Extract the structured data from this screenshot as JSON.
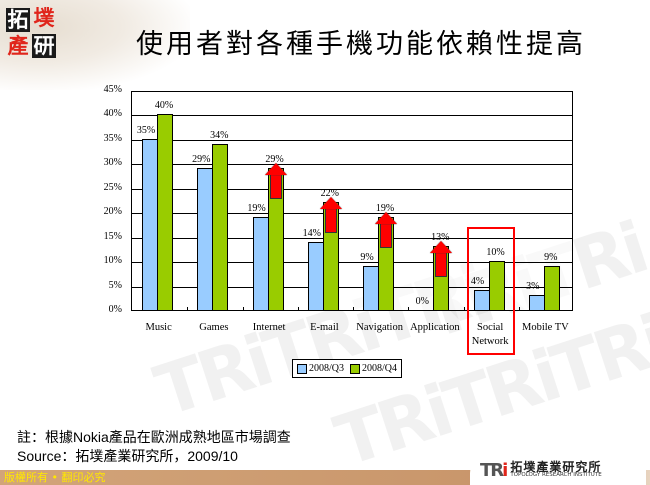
{
  "header": {
    "logo_chars": [
      "拓",
      "墣",
      "產",
      "研"
    ],
    "title": "使用者對各種手機功能依賴性提高"
  },
  "chart_data": {
    "type": "bar",
    "title": "使用者對各種手機功能依賴性提高",
    "categories": [
      "Music",
      "Games",
      "Internet",
      "E-mail",
      "Navigation",
      "Application",
      "Social Network",
      "Mobile TV"
    ],
    "category_lines": [
      [
        "Music"
      ],
      [
        "Games"
      ],
      [
        "Internet"
      ],
      [
        "E-mail"
      ],
      [
        "Navigation"
      ],
      [
        "Application"
      ],
      [
        "Social",
        "Network"
      ],
      [
        "Mobile TV"
      ]
    ],
    "series": [
      {
        "name": "2008/Q3",
        "color": "#99ccff",
        "values": [
          35,
          29,
          19,
          14,
          9,
          0,
          4,
          3
        ]
      },
      {
        "name": "2008/Q4",
        "color": "#99cc00",
        "values": [
          40,
          34,
          29,
          22,
          19,
          13,
          10,
          9
        ]
      }
    ],
    "value_labels": {
      "2008/Q3": [
        "35%",
        "29%",
        "19%",
        "14%",
        "9%",
        "0%",
        "4%",
        "3%"
      ],
      "2008/Q4": [
        "40%",
        "34%",
        "29%",
        "22%",
        "19%",
        "13%",
        "10%",
        "9%"
      ]
    },
    "yticks": [
      "0%",
      "5%",
      "10%",
      "15%",
      "20%",
      "25%",
      "30%",
      "35%",
      "40%",
      "45%"
    ],
    "ylim": [
      0,
      45
    ],
    "xlabel": "",
    "ylabel": "",
    "grid": true,
    "legend_position": "bottom",
    "annotations": {
      "up_arrows_on": [
        "Internet",
        "E-mail",
        "Navigation",
        "Application"
      ],
      "highlight_box": "Social Network"
    }
  },
  "legend": {
    "items": [
      {
        "label": "2008/Q3",
        "color": "#99ccff"
      },
      {
        "label": "2008/Q4",
        "color": "#99cc00"
      }
    ]
  },
  "notes": {
    "note": "註：根據Nokia產品在歐洲成熟地區市場調查",
    "source": "Source：拓墣產業研究所，2009/10"
  },
  "footer": {
    "copyright": "版權所有 • 翻印必究",
    "brand_mark": "TRi",
    "brand_zh": "拓墣產業研究所",
    "brand_en": "TOPOLOGY RESEARCH INSTITUTE"
  }
}
